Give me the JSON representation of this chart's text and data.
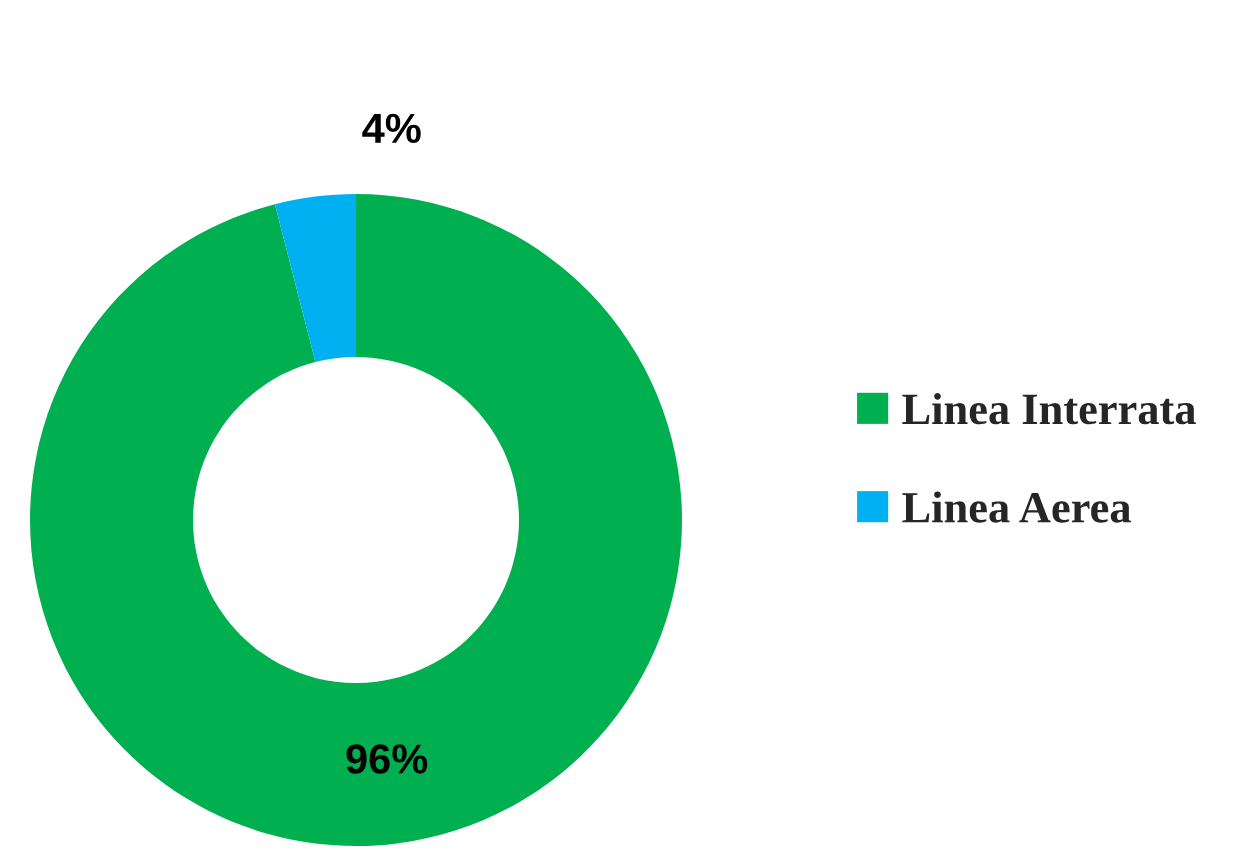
{
  "chart_data": {
    "type": "donut",
    "categories": [
      "Linea Interrata",
      "Linea Aerea"
    ],
    "values": [
      96,
      4
    ],
    "colors": [
      "#00b050",
      "#00b0f0"
    ],
    "value_labels": [
      "96%",
      "4%"
    ],
    "legend": "right"
  }
}
